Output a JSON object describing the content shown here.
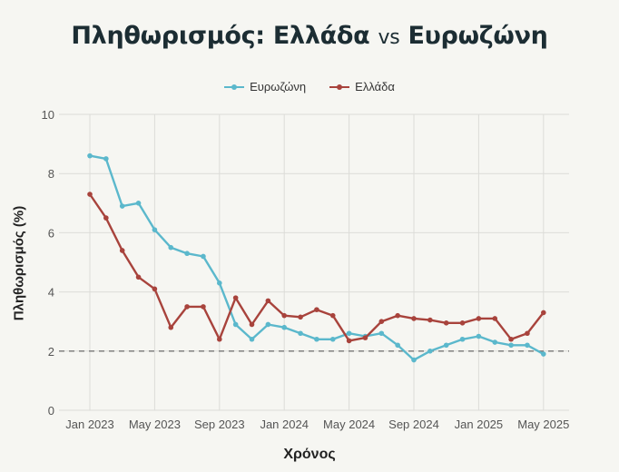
{
  "title_main": "Πληθωρισμός: Ελλάδα",
  "title_vs": "vs",
  "title_end": "Ευρωζώνη",
  "legend": [
    {
      "label": "Ευρωζώνη",
      "color": "#5bb8cc"
    },
    {
      "label": "Ελλάδα",
      "color": "#a8433c"
    }
  ],
  "chart_data": {
    "type": "line",
    "xlabel": "Χρόνος",
    "ylabel": "Πληθωρισμός (%)",
    "ylim": [
      0,
      10
    ],
    "yticks": [
      0,
      2,
      4,
      6,
      8,
      10
    ],
    "x_tick_labels": [
      "Jan 2023",
      "May 2023",
      "Sep 2023",
      "Jan 2024",
      "May 2024",
      "Sep 2024",
      "Jan 2025",
      "May 2025"
    ],
    "x": [
      "2023-01",
      "2023-02",
      "2023-03",
      "2023-04",
      "2023-05",
      "2023-06",
      "2023-07",
      "2023-08",
      "2023-09",
      "2023-10",
      "2023-11",
      "2023-12",
      "2024-01",
      "2024-02",
      "2024-03",
      "2024-04",
      "2024-05",
      "2024-06",
      "2024-07",
      "2024-08",
      "2024-09",
      "2024-10",
      "2024-11",
      "2024-12",
      "2025-01",
      "2025-02",
      "2025-03",
      "2025-04",
      "2025-05"
    ],
    "reference_line": {
      "y": 2,
      "style": "dashed"
    },
    "grid": true,
    "legend_position": "top-center",
    "series": [
      {
        "name": "Ευρωζώνη",
        "color": "#5bb8cc",
        "values": [
          8.6,
          8.5,
          6.9,
          7.0,
          6.1,
          5.5,
          5.3,
          5.2,
          4.3,
          2.9,
          2.4,
          2.9,
          2.8,
          2.6,
          2.4,
          2.4,
          2.6,
          2.5,
          2.6,
          2.2,
          1.7,
          2.0,
          2.2,
          2.4,
          2.5,
          2.3,
          2.2,
          2.2,
          1.9
        ]
      },
      {
        "name": "Ελλάδα",
        "color": "#a8433c",
        "values": [
          7.3,
          6.5,
          5.4,
          4.5,
          4.1,
          2.8,
          3.5,
          3.5,
          2.4,
          3.8,
          2.9,
          3.7,
          3.2,
          3.15,
          3.4,
          3.2,
          2.35,
          2.45,
          3.0,
          3.2,
          3.1,
          3.05,
          2.95,
          2.95,
          3.1,
          3.1,
          2.4,
          2.6,
          3.3
        ]
      }
    ]
  }
}
